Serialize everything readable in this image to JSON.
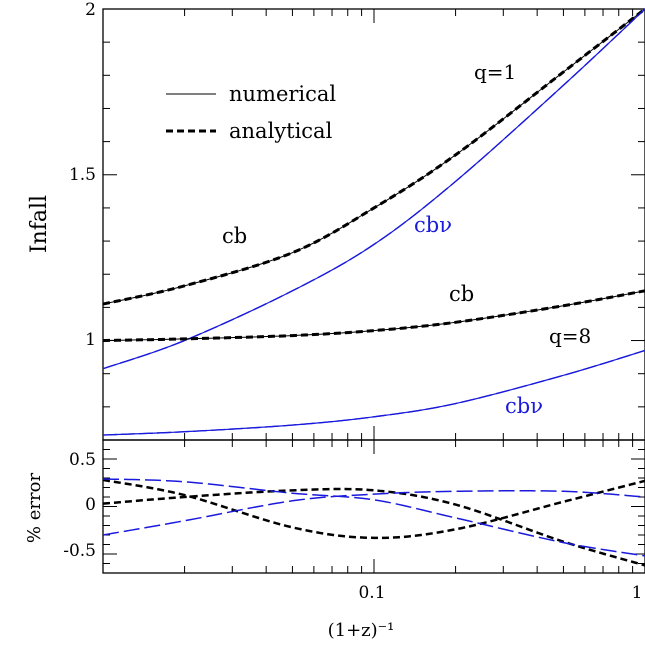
{
  "chart_data": [
    {
      "type": "line",
      "panel": "top",
      "ylabel": "Infall",
      "xscale": "log",
      "xlim": [
        0.01,
        1
      ],
      "ylim": [
        0.7,
        2
      ],
      "yticks": [
        "1",
        "1.5",
        "2"
      ],
      "legend": {
        "placement": "top-left",
        "entries": [
          {
            "label": "numerical",
            "style": "solid"
          },
          {
            "label": "analytical",
            "style": "dashed"
          }
        ]
      },
      "annotations": {
        "q1": "q=1",
        "q8": "q=8",
        "cb_q1": "cb",
        "cbnu_q1": "cbν",
        "cb_q8": "cb",
        "cbnu_q8": "cbν"
      },
      "series": [
        {
          "group": "q=1",
          "component": "cb",
          "color": "#000000",
          "x": [
            0.01,
            0.02,
            0.05,
            0.1,
            0.2,
            0.5,
            1.0
          ],
          "y": [
            1.11,
            1.165,
            1.265,
            1.4,
            1.56,
            1.81,
            2.0
          ]
        },
        {
          "group": "q=1",
          "component": "cbν",
          "color": "#1a1adc",
          "x": [
            0.01,
            0.02,
            0.05,
            0.1,
            0.2,
            0.5,
            1.0
          ],
          "y": [
            0.915,
            1.0,
            1.15,
            1.29,
            1.48,
            1.77,
            2.0
          ]
        },
        {
          "group": "q=8",
          "component": "cb",
          "color": "#000000",
          "x": [
            0.01,
            0.02,
            0.05,
            0.1,
            0.2,
            0.5,
            1.0
          ],
          "y": [
            1.0,
            1.005,
            1.015,
            1.03,
            1.055,
            1.105,
            1.15
          ]
        },
        {
          "group": "q=8",
          "component": "cbν",
          "color": "#1a1adc",
          "x": [
            0.01,
            0.02,
            0.05,
            0.1,
            0.2,
            0.5,
            1.0
          ],
          "y": [
            0.715,
            0.725,
            0.745,
            0.77,
            0.81,
            0.895,
            0.97
          ]
        }
      ]
    },
    {
      "type": "line",
      "panel": "bottom",
      "ylabel": "% error",
      "xlabel": "(1+z)⁻¹",
      "xscale": "log",
      "xlim": [
        0.01,
        1
      ],
      "ylim": [
        -0.7,
        0.7
      ],
      "xticks": [
        "0.1",
        "1"
      ],
      "yticks": [
        "0.5",
        "0",
        "-0.5"
      ],
      "series": [
        {
          "group": "q=1",
          "component": "cb",
          "color": "#000000",
          "x": [
            0.01,
            0.02,
            0.05,
            0.1,
            0.2,
            0.5,
            1.0
          ],
          "y": [
            0.28,
            0.12,
            -0.22,
            -0.33,
            -0.24,
            0.05,
            0.27
          ]
        },
        {
          "group": "q=8",
          "component": "cb",
          "color": "#000000",
          "x": [
            0.01,
            0.02,
            0.05,
            0.1,
            0.2,
            0.5,
            1.0
          ],
          "y": [
            0.03,
            0.1,
            0.17,
            0.17,
            0.02,
            -0.37,
            -0.62
          ]
        },
        {
          "group": "q=1",
          "component": "cbν",
          "color": "#1a1adc",
          "x": [
            0.01,
            0.02,
            0.05,
            0.1,
            0.2,
            0.5,
            1.0
          ],
          "y": [
            0.29,
            0.26,
            0.14,
            0.07,
            -0.12,
            -0.38,
            -0.52
          ]
        },
        {
          "group": "q=8",
          "component": "cbν",
          "color": "#1a1adc",
          "x": [
            0.01,
            0.02,
            0.05,
            0.1,
            0.2,
            0.5,
            1.0
          ],
          "y": [
            -0.3,
            -0.15,
            0.06,
            0.13,
            0.16,
            0.16,
            0.1
          ]
        }
      ]
    }
  ]
}
